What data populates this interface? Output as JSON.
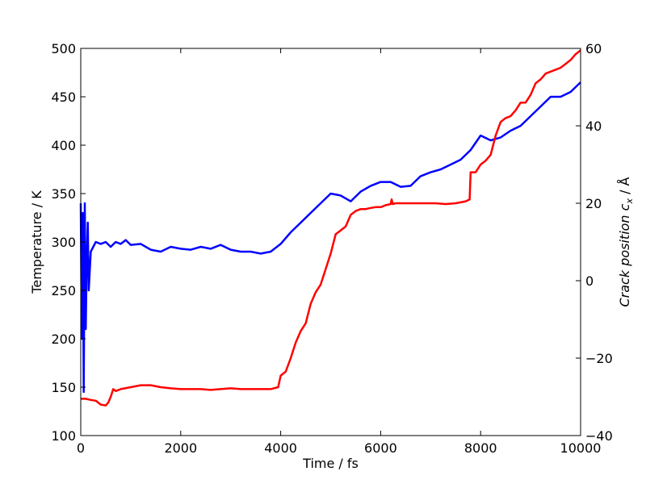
{
  "chart_data": {
    "type": "line",
    "xlabel": "Time / fs",
    "ylabel_left": "Temperature / K",
    "ylabel_right": "Crack position c",
    "ylabel_right_subscript": "x",
    "ylabel_right_unit": " / Å",
    "xlim": [
      0,
      10000
    ],
    "ylim_left": [
      100,
      500
    ],
    "ylim_right": [
      -40,
      60
    ],
    "x_ticks": [
      0,
      2000,
      4000,
      6000,
      8000,
      10000
    ],
    "y_left_ticks": [
      100,
      150,
      200,
      250,
      300,
      350,
      400,
      450,
      500
    ],
    "y_right_ticks": [
      -40,
      -20,
      0,
      20,
      40,
      60
    ],
    "x_tick_labels": [
      "0",
      "2000",
      "4000",
      "6000",
      "8000",
      "10000"
    ],
    "y_left_tick_labels": [
      "100",
      "150",
      "200",
      "250",
      "300",
      "350",
      "400",
      "450",
      "500"
    ],
    "y_right_tick_labels": [
      "−40",
      "−20",
      "0",
      "20",
      "40",
      "60"
    ],
    "grid": false,
    "series": [
      {
        "axis": "left",
        "color": "#0000ff",
        "x": [
          0,
          20,
          40,
          60,
          80,
          100,
          120,
          140,
          160,
          200,
          250,
          300,
          400,
          500,
          600,
          700,
          800,
          900,
          1000,
          1200,
          1400,
          1600,
          1800,
          2000,
          2200,
          2400,
          2600,
          2800,
          3000,
          3200,
          3400,
          3600,
          3800,
          4000,
          4200,
          4400,
          4600,
          4800,
          5000,
          5200,
          5400,
          5600,
          5800,
          6000,
          6200,
          6400,
          6600,
          6800,
          7000,
          7200,
          7400,
          7600,
          7800,
          8000,
          8200,
          8400,
          8600,
          8800,
          9000,
          9200,
          9400,
          9600,
          9800,
          10000
        ],
        "values": [
          340,
          200,
          330,
          145,
          340,
          210,
          280,
          320,
          250,
          290,
          295,
          300,
          298,
          300,
          295,
          300,
          298,
          302,
          297,
          298,
          292,
          290,
          295,
          293,
          292,
          295,
          293,
          297,
          292,
          290,
          290,
          288,
          290,
          298,
          310,
          320,
          330,
          340,
          350,
          348,
          342,
          352,
          358,
          362,
          362,
          357,
          358,
          368,
          372,
          375,
          380,
          385,
          395,
          410,
          405,
          408,
          415,
          420,
          430,
          440,
          450,
          450,
          455,
          465
        ]
      },
      {
        "axis": "right",
        "color": "#ff0000",
        "x": [
          0,
          100,
          200,
          300,
          400,
          500,
          550,
          600,
          650,
          700,
          800,
          1000,
          1200,
          1400,
          1600,
          1800,
          2000,
          2200,
          2400,
          2600,
          2800,
          3000,
          3200,
          3400,
          3600,
          3800,
          3950,
          4000,
          4100,
          4200,
          4300,
          4400,
          4500,
          4600,
          4700,
          4800,
          4900,
          5000,
          5100,
          5200,
          5300,
          5400,
          5500,
          5600,
          5700,
          5800,
          5900,
          6000,
          6100,
          6200,
          6220,
          6240,
          6300,
          6500,
          6700,
          6900,
          7100,
          7300,
          7500,
          7700,
          7780,
          7800,
          7900,
          8000,
          8100,
          8200,
          8250,
          8300,
          8400,
          8500,
          8600,
          8700,
          8800,
          8900,
          9000,
          9100,
          9200,
          9300,
          9400,
          9500,
          9600,
          9700,
          9800,
          9900,
          10000
        ],
        "values": [
          -30.5,
          -30.5,
          -30.8,
          -31.0,
          -32.0,
          -32.2,
          -31.5,
          -30.0,
          -28.0,
          -28.5,
          -28.0,
          -27.5,
          -27.0,
          -27.0,
          -27.5,
          -27.8,
          -28.0,
          -28.0,
          -28.0,
          -28.2,
          -28.0,
          -27.8,
          -28.0,
          -28.0,
          -28.0,
          -28.0,
          -27.5,
          -24.5,
          -23.5,
          -20.0,
          -16.0,
          -13.0,
          -11.0,
          -6.0,
          -3.0,
          -1.0,
          3.0,
          7.0,
          12.0,
          13.0,
          14.0,
          17.0,
          18.0,
          18.5,
          18.5,
          18.8,
          19.0,
          19.0,
          19.5,
          19.8,
          21.0,
          19.8,
          20.0,
          20.0,
          20.0,
          20.0,
          20.0,
          19.8,
          20.0,
          20.5,
          21.0,
          28.0,
          28.0,
          30.0,
          31.0,
          32.5,
          35.0,
          37.5,
          41.0,
          42.0,
          42.5,
          44.0,
          46.0,
          46.0,
          48.0,
          51.0,
          52.0,
          53.5,
          54.0,
          54.5,
          55.0,
          56.0,
          57.0,
          58.5,
          59.5
        ]
      }
    ]
  }
}
